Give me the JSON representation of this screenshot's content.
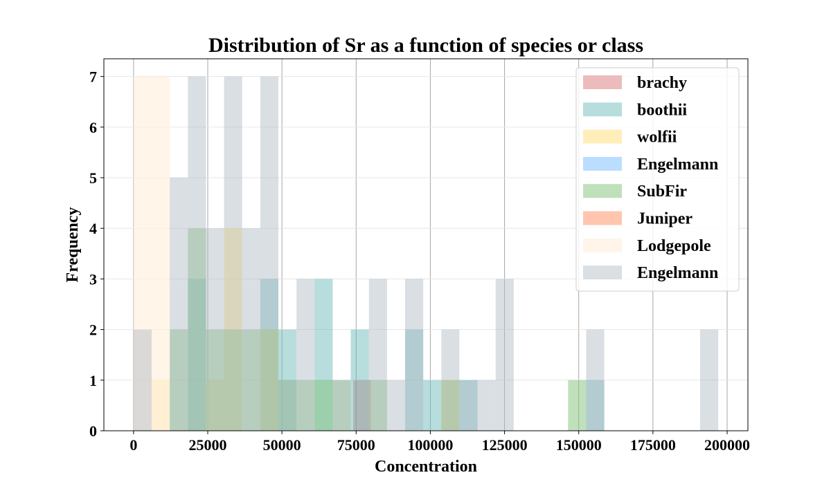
{
  "chart_data": {
    "type": "bar",
    "histogram": true,
    "title": "Distribution of Sr as a function of species or class",
    "xlabel": "Concentration",
    "ylabel": "Frequency",
    "xlim": [
      -10000,
      207000
    ],
    "ylim": [
      0,
      7.35
    ],
    "grid": true,
    "legend_position": "top-right",
    "x_ticks": [
      0,
      25000,
      50000,
      75000,
      100000,
      125000,
      150000,
      175000,
      200000
    ],
    "x_tick_labels": [
      "0",
      "25000",
      "50000",
      "75000",
      "100000",
      "125000",
      "150000",
      "175000",
      "200000"
    ],
    "y_ticks": [
      0,
      1,
      2,
      3,
      4,
      5,
      6,
      7
    ],
    "y_tick_labels": [
      "0",
      "1",
      "2",
      "3",
      "4",
      "5",
      "6",
      "7"
    ],
    "series": [
      {
        "name": "brachy",
        "color": "#d46a6a",
        "opacity": 0.45,
        "bins": [
          [
            74000,
            80000,
            1
          ]
        ]
      },
      {
        "name": "boothii",
        "color": "#5fb3b3",
        "opacity": 0.45,
        "bins": [
          [
            18300,
            24400,
            3
          ],
          [
            42700,
            48800,
            3
          ],
          [
            48800,
            54900,
            2
          ],
          [
            61000,
            67100,
            3
          ],
          [
            73200,
            79300,
            2
          ],
          [
            91500,
            97600,
            2
          ],
          [
            97600,
            103700,
            1
          ],
          [
            109800,
            115900,
            1
          ],
          [
            152500,
            158600,
            1
          ]
        ]
      },
      {
        "name": "wolfii",
        "color": "#ffe38a",
        "opacity": 0.6,
        "bins": [
          [
            6100,
            12200,
            1
          ],
          [
            24400,
            30500,
            1
          ],
          [
            30500,
            36600,
            4
          ],
          [
            42700,
            48800,
            2
          ],
          [
            103700,
            109800,
            1
          ]
        ]
      },
      {
        "name": "Engelmann",
        "color": "#8ec6ff",
        "opacity": 0.6,
        "bins": []
      },
      {
        "name": "SubFir",
        "color": "#82c17a",
        "opacity": 0.5,
        "bins": [
          [
            12200,
            18300,
            2
          ],
          [
            18300,
            24400,
            4
          ],
          [
            24400,
            30500,
            2
          ],
          [
            30500,
            36600,
            2
          ],
          [
            36600,
            42700,
            2
          ],
          [
            42700,
            48800,
            2
          ],
          [
            48800,
            54900,
            1
          ],
          [
            54900,
            61000,
            1
          ],
          [
            61000,
            67100,
            1
          ],
          [
            67100,
            73200,
            1
          ],
          [
            79300,
            85400,
            1
          ],
          [
            103700,
            109800,
            1
          ],
          [
            146400,
            152500,
            1
          ]
        ]
      },
      {
        "name": "Juniper",
        "color": "#ff9e7a",
        "opacity": 0.6,
        "bins": []
      },
      {
        "name": "Lodgepole",
        "color": "#fff1de",
        "opacity": 0.7,
        "bins": [
          [
            0,
            6100,
            7
          ],
          [
            6100,
            12200,
            7
          ]
        ]
      },
      {
        "name": "Engelmann",
        "color": "#aeb7c4",
        "opacity": 0.45,
        "bins": [
          [
            0,
            6100,
            2
          ],
          [
            12200,
            18300,
            5
          ],
          [
            18300,
            24400,
            7
          ],
          [
            24400,
            30500,
            4
          ],
          [
            30500,
            36600,
            7
          ],
          [
            36600,
            42700,
            4
          ],
          [
            42700,
            48800,
            7
          ],
          [
            48800,
            54900,
            1
          ],
          [
            54900,
            61000,
            3
          ],
          [
            67100,
            73200,
            1
          ],
          [
            79300,
            85400,
            3
          ],
          [
            85400,
            91500,
            1
          ],
          [
            91500,
            97600,
            3
          ],
          [
            103700,
            109800,
            2
          ],
          [
            109800,
            115900,
            1
          ],
          [
            115900,
            122000,
            1
          ],
          [
            122000,
            128100,
            3
          ],
          [
            152500,
            158600,
            2
          ],
          [
            190900,
            197000,
            2
          ]
        ]
      }
    ]
  }
}
